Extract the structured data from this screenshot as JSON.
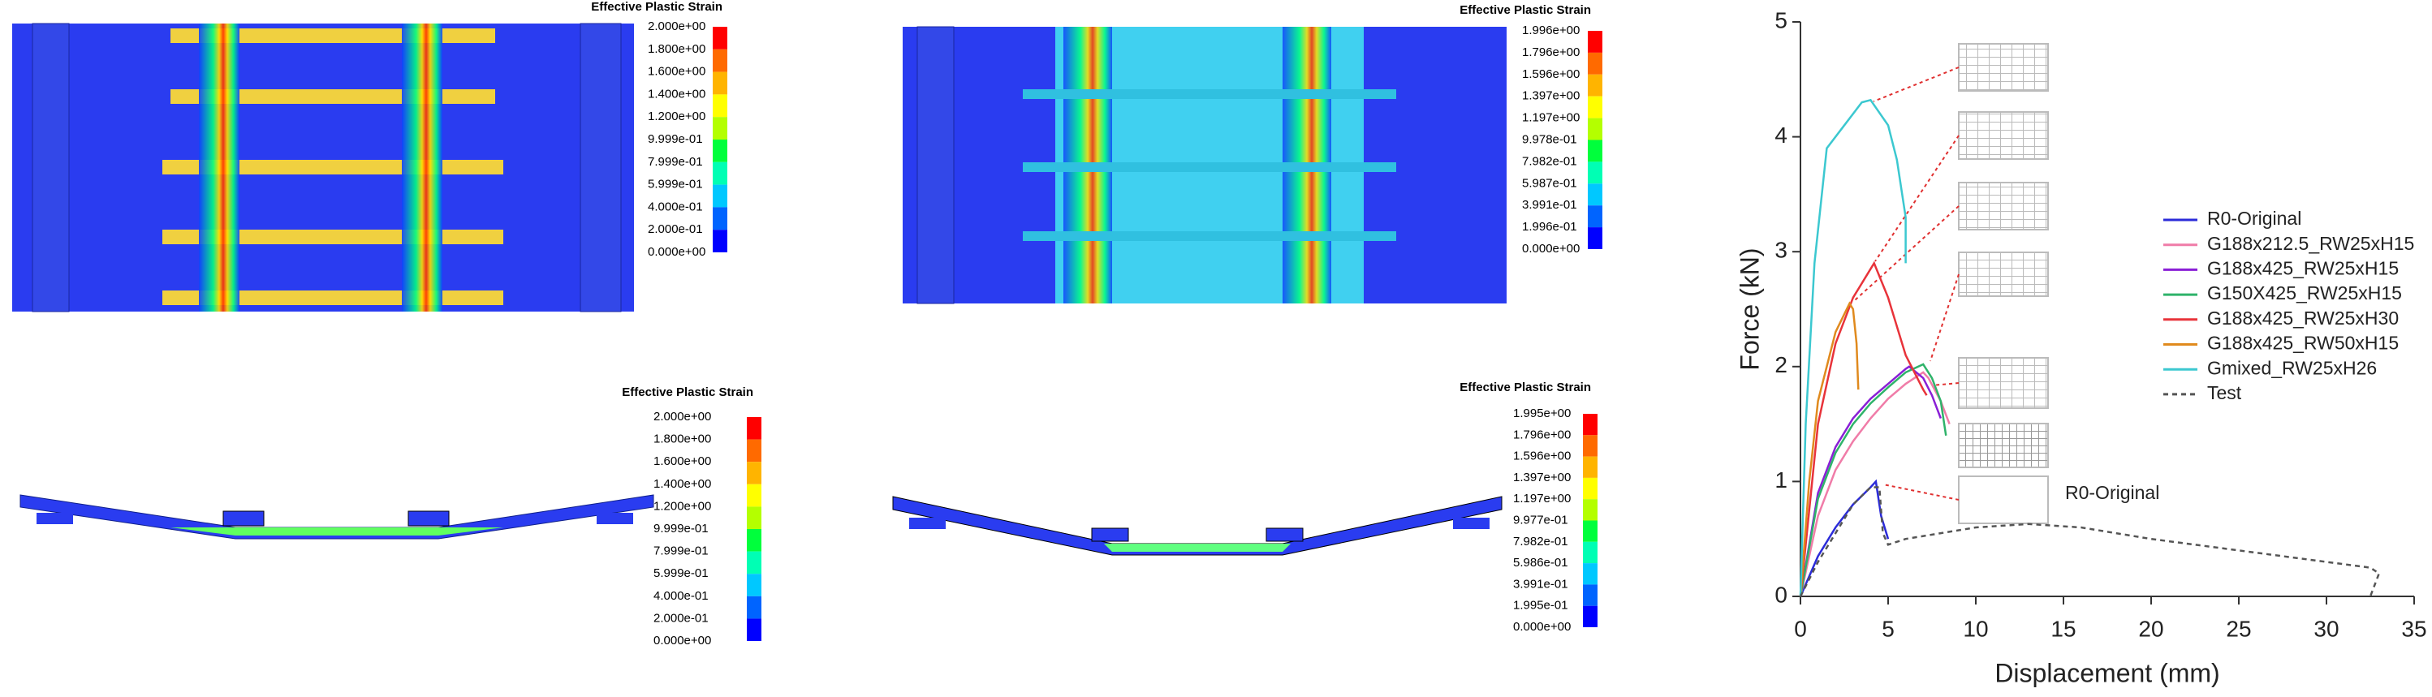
{
  "colorbar_colors": [
    "#ff0000",
    "#ff6a00",
    "#ffb400",
    "#ffff00",
    "#b4ff00",
    "#00ff3c",
    "#00ffb4",
    "#00c8ff",
    "#0064ff",
    "#0000ff"
  ],
  "contour_plots": [
    {
      "title": "Effective Plastic Strain",
      "labels": [
        "2.000e+00",
        "1.800e+00",
        "1.600e+00",
        "1.400e+00",
        "1.200e+00",
        "9.999e-01",
        "7.999e-01",
        "5.999e-01",
        "4.000e-01",
        "2.000e-01",
        "0.000e+00"
      ]
    },
    {
      "title": "Effective Plastic Strain",
      "labels": [
        "1.996e+00",
        "1.796e+00",
        "1.596e+00",
        "1.397e+00",
        "1.197e+00",
        "9.978e-01",
        "7.982e-01",
        "5.987e-01",
        "3.991e-01",
        "1.996e-01",
        "0.000e+00"
      ]
    },
    {
      "title": "Effective Plastic Strain",
      "labels": [
        "2.000e+00",
        "1.800e+00",
        "1.600e+00",
        "1.400e+00",
        "1.200e+00",
        "9.999e-01",
        "7.999e-01",
        "5.999e-01",
        "4.000e-01",
        "2.000e-01",
        "0.000e+00"
      ]
    },
    {
      "title": "Effective Plastic Strain",
      "labels": [
        "1.995e+00",
        "1.796e+00",
        "1.596e+00",
        "1.397e+00",
        "1.197e+00",
        "9.977e-01",
        "7.982e-01",
        "5.986e-01",
        "3.991e-01",
        "1.995e-01",
        "0.000e+00"
      ]
    }
  ],
  "chart_data": {
    "type": "line",
    "x_label": "Displacement (mm)",
    "y_label": "Force (kN)",
    "xlim": [
      0,
      35
    ],
    "ylim": [
      0,
      5
    ],
    "xticks": [
      0,
      5,
      10,
      15,
      20,
      25,
      30,
      35
    ],
    "yticks": [
      0,
      1,
      2,
      3,
      4,
      5
    ],
    "annotation": "R0-Original",
    "legend": "right",
    "series": [
      {
        "name": "R0-Original",
        "color": "#2b2bd9",
        "x": [
          0,
          1,
          2,
          3,
          4,
          4.3,
          4.6,
          5
        ],
        "values": [
          0,
          0.35,
          0.6,
          0.8,
          0.95,
          1.0,
          0.7,
          0.5
        ]
      },
      {
        "name": "G188x212.5_RW25xH15",
        "color": "#f07ca8",
        "x": [
          0,
          1,
          2,
          3,
          4,
          5,
          6,
          7,
          7.3,
          8,
          8.5
        ],
        "values": [
          0,
          0.7,
          1.1,
          1.35,
          1.55,
          1.72,
          1.85,
          1.95,
          1.9,
          1.7,
          1.5
        ]
      },
      {
        "name": "G188x425_RW25xH15",
        "color": "#8a1fd6",
        "x": [
          0,
          1,
          2,
          3,
          4,
          5,
          6,
          6.2,
          7,
          7.5,
          8
        ],
        "values": [
          0,
          0.9,
          1.3,
          1.55,
          1.72,
          1.85,
          1.98,
          2.0,
          1.9,
          1.75,
          1.55
        ]
      },
      {
        "name": "G150X425_RW25xH15",
        "color": "#2fb36a",
        "x": [
          0,
          1,
          2,
          3,
          4,
          5,
          6,
          7,
          7.5,
          8,
          8.3
        ],
        "values": [
          0,
          0.85,
          1.25,
          1.5,
          1.68,
          1.82,
          1.95,
          2.02,
          1.9,
          1.7,
          1.4
        ]
      },
      {
        "name": "G188x425_RW25xH30",
        "color": "#e8333a",
        "x": [
          0,
          1,
          2,
          3,
          4,
          4.2,
          5,
          6,
          6.5,
          7,
          7.2
        ],
        "values": [
          0,
          1.5,
          2.2,
          2.6,
          2.85,
          2.9,
          2.6,
          2.1,
          1.95,
          1.8,
          1.75
        ]
      },
      {
        "name": "G188x425_RW50xH15",
        "color": "#e08a1e",
        "x": [
          0,
          0.5,
          1,
          2,
          2.8,
          3,
          3.2,
          3.3
        ],
        "values": [
          0,
          1.0,
          1.7,
          2.3,
          2.55,
          2.5,
          2.2,
          1.8
        ]
      },
      {
        "name": "Gmixed_RW25xH26",
        "color": "#3cc8d0",
        "x": [
          0,
          0.3,
          0.8,
          1.5,
          2.5,
          3.5,
          4,
          5,
          5.5,
          6,
          6
        ],
        "values": [
          0,
          1.5,
          2.9,
          3.9,
          4.1,
          4.3,
          4.32,
          4.1,
          3.8,
          3.3,
          2.9
        ]
      },
      {
        "name": "Test",
        "color": "#555555",
        "line_style": "dashed",
        "x": [
          0,
          1,
          2,
          3,
          4,
          4.5,
          4.7,
          5,
          6,
          8,
          10,
          13,
          16,
          20,
          25,
          30,
          32.5,
          33,
          32.5
        ],
        "values": [
          0,
          0.3,
          0.55,
          0.8,
          0.95,
          0.95,
          0.55,
          0.45,
          0.5,
          0.55,
          0.6,
          0.63,
          0.6,
          0.5,
          0.4,
          0.3,
          0.25,
          0.2,
          0
        ]
      }
    ]
  }
}
